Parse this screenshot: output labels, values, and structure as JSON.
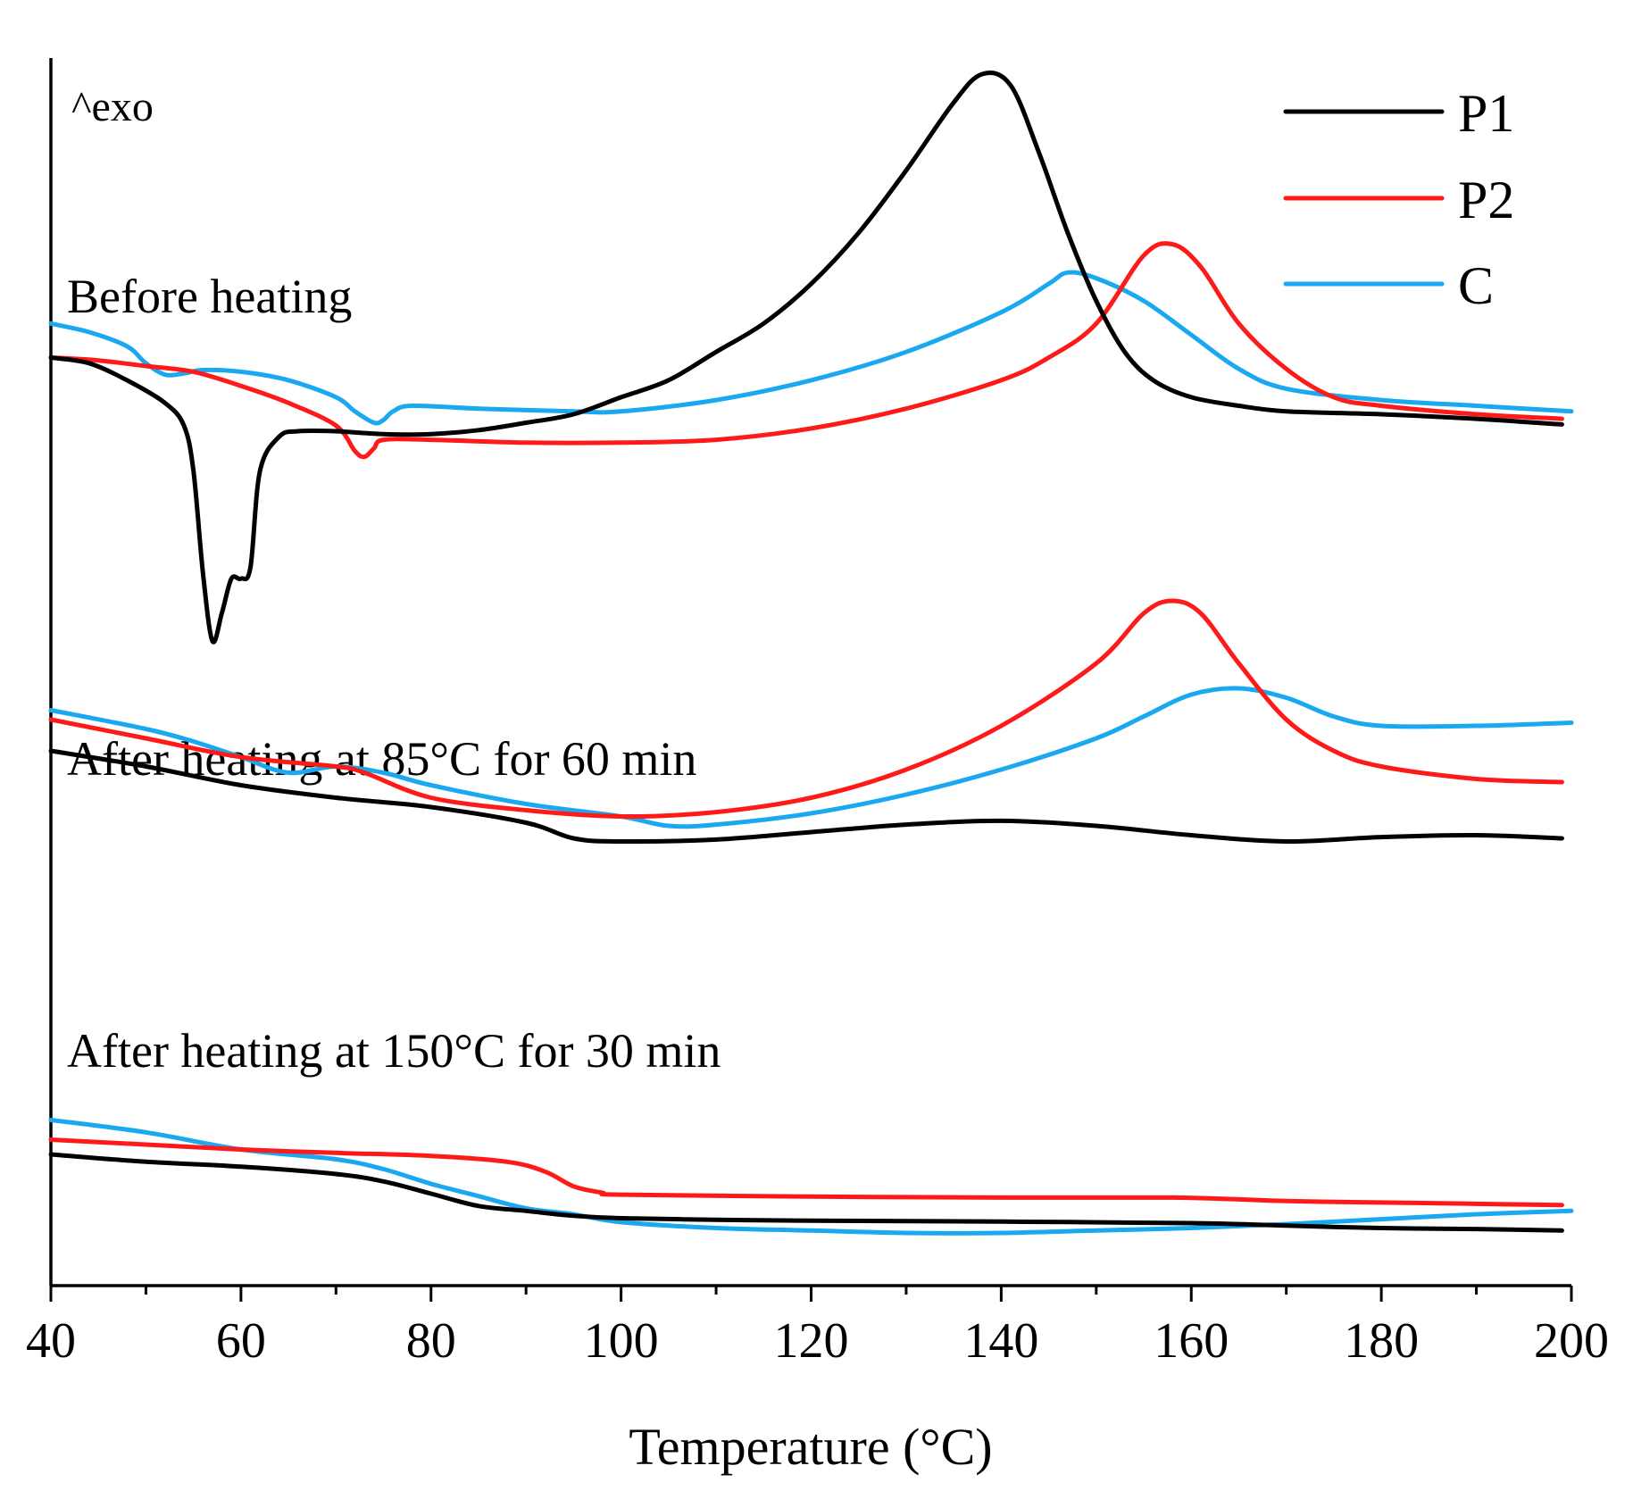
{
  "chart_data": {
    "type": "line",
    "title": "",
    "xlabel": "Temperature (°C)",
    "ylabel": "",
    "xlim": [
      40,
      200
    ],
    "x_ticks": [
      40,
      60,
      80,
      100,
      120,
      140,
      160,
      180,
      200
    ],
    "x_minor_ticks": [
      50,
      70,
      90,
      110,
      130,
      150,
      170,
      190
    ],
    "y_ticks": [],
    "grid": false,
    "y_units": "arbitrary (heat flow, curves vertically offset per panel)",
    "exo_label": "^exo",
    "legend": {
      "position": "top-right",
      "entries": [
        {
          "name": "P1",
          "color": "#000000"
        },
        {
          "name": "P2",
          "color": "#ff1a1a"
        },
        {
          "name": "C",
          "color": "#1aa8f0"
        }
      ]
    },
    "panels": [
      {
        "label": "Before heating",
        "series": [
          {
            "name": "P1",
            "color": "#000000",
            "points": [
              [
                40,
                5.0
              ],
              [
                44,
                4.9
              ],
              [
                48,
                4.6
              ],
              [
                52,
                4.2
              ],
              [
                54,
                3.8
              ],
              [
                55,
                3.0
              ],
              [
                56,
                1.2
              ],
              [
                57,
                0.0
              ],
              [
                58,
                0.5
              ],
              [
                59,
                1.1
              ],
              [
                60,
                1.1
              ],
              [
                61,
                1.3
              ],
              [
                62,
                3.0
              ],
              [
                64,
                3.6
              ],
              [
                66,
                3.7
              ],
              [
                70,
                3.7
              ],
              [
                75,
                3.65
              ],
              [
                80,
                3.65
              ],
              [
                85,
                3.72
              ],
              [
                90,
                3.85
              ],
              [
                95,
                4.0
              ],
              [
                100,
                4.3
              ],
              [
                105,
                4.6
              ],
              [
                110,
                5.1
              ],
              [
                115,
                5.6
              ],
              [
                120,
                6.3
              ],
              [
                125,
                7.2
              ],
              [
                130,
                8.3
              ],
              [
                135,
                9.5
              ],
              [
                138,
                10.0
              ],
              [
                141,
                9.8
              ],
              [
                144,
                8.6
              ],
              [
                147,
                7.2
              ],
              [
                150,
                6.0
              ],
              [
                153,
                5.1
              ],
              [
                156,
                4.6
              ],
              [
                160,
                4.3
              ],
              [
                165,
                4.15
              ],
              [
                170,
                4.05
              ],
              [
                180,
                4.0
              ],
              [
                190,
                3.92
              ],
              [
                199,
                3.82
              ]
            ]
          },
          {
            "name": "P2",
            "color": "#ff1a1a",
            "points": [
              [
                40,
                5.0
              ],
              [
                45,
                4.95
              ],
              [
                50,
                4.85
              ],
              [
                55,
                4.75
              ],
              [
                60,
                4.5
              ],
              [
                65,
                4.2
              ],
              [
                70,
                3.8
              ],
              [
                72,
                3.35
              ],
              [
                73,
                3.25
              ],
              [
                74,
                3.4
              ],
              [
                75,
                3.55
              ],
              [
                80,
                3.55
              ],
              [
                90,
                3.5
              ],
              [
                100,
                3.5
              ],
              [
                110,
                3.55
              ],
              [
                120,
                3.75
              ],
              [
                130,
                4.1
              ],
              [
                140,
                4.6
              ],
              [
                145,
                5.0
              ],
              [
                150,
                5.6
              ],
              [
                155,
                6.8
              ],
              [
                158,
                7.0
              ],
              [
                161,
                6.6
              ],
              [
                165,
                5.6
              ],
              [
                170,
                4.8
              ],
              [
                175,
                4.3
              ],
              [
                180,
                4.15
              ],
              [
                190,
                4.0
              ],
              [
                199,
                3.92
              ]
            ]
          },
          {
            "name": "C",
            "color": "#1aa8f0",
            "points": [
              [
                40,
                5.6
              ],
              [
                44,
                5.45
              ],
              [
                48,
                5.2
              ],
              [
                50,
                4.9
              ],
              [
                52,
                4.7
              ],
              [
                54,
                4.72
              ],
              [
                56,
                4.78
              ],
              [
                60,
                4.75
              ],
              [
                65,
                4.6
              ],
              [
                70,
                4.3
              ],
              [
                72,
                4.05
              ],
              [
                74,
                3.85
              ],
              [
                75,
                3.9
              ],
              [
                76,
                4.05
              ],
              [
                78,
                4.15
              ],
              [
                85,
                4.1
              ],
              [
                95,
                4.05
              ],
              [
                100,
                4.05
              ],
              [
                110,
                4.25
              ],
              [
                120,
                4.6
              ],
              [
                130,
                5.1
              ],
              [
                140,
                5.8
              ],
              [
                145,
                6.3
              ],
              [
                147,
                6.5
              ],
              [
                150,
                6.4
              ],
              [
                155,
                6.0
              ],
              [
                160,
                5.4
              ],
              [
                165,
                4.8
              ],
              [
                170,
                4.45
              ],
              [
                180,
                4.25
              ],
              [
                190,
                4.15
              ],
              [
                200,
                4.05
              ]
            ]
          }
        ]
      },
      {
        "label": "After heating at 85°C for 60 min",
        "series": [
          {
            "name": "P1",
            "color": "#000000",
            "points": [
              [
                40,
                2.8
              ],
              [
                50,
                2.55
              ],
              [
                60,
                2.25
              ],
              [
                70,
                2.05
              ],
              [
                80,
                1.9
              ],
              [
                90,
                1.65
              ],
              [
                95,
                1.4
              ],
              [
                100,
                1.35
              ],
              [
                110,
                1.38
              ],
              [
                120,
                1.5
              ],
              [
                130,
                1.62
              ],
              [
                140,
                1.68
              ],
              [
                150,
                1.6
              ],
              [
                160,
                1.45
              ],
              [
                170,
                1.35
              ],
              [
                180,
                1.42
              ],
              [
                190,
                1.45
              ],
              [
                199,
                1.4
              ]
            ]
          },
          {
            "name": "P2",
            "color": "#ff1a1a",
            "points": [
              [
                40,
                3.3
              ],
              [
                50,
                3.0
              ],
              [
                60,
                2.7
              ],
              [
                70,
                2.55
              ],
              [
                73,
                2.45
              ],
              [
                80,
                2.05
              ],
              [
                90,
                1.85
              ],
              [
                100,
                1.75
              ],
              [
                110,
                1.82
              ],
              [
                120,
                2.05
              ],
              [
                130,
                2.5
              ],
              [
                140,
                3.2
              ],
              [
                150,
                4.2
              ],
              [
                155,
                5.0
              ],
              [
                158,
                5.2
              ],
              [
                161,
                5.0
              ],
              [
                165,
                4.2
              ],
              [
                170,
                3.3
              ],
              [
                175,
                2.8
              ],
              [
                180,
                2.55
              ],
              [
                190,
                2.35
              ],
              [
                199,
                2.3
              ]
            ]
          },
          {
            "name": "C",
            "color": "#1aa8f0",
            "points": [
              [
                40,
                3.45
              ],
              [
                50,
                3.15
              ],
              [
                55,
                2.95
              ],
              [
                60,
                2.7
              ],
              [
                65,
                2.45
              ],
              [
                70,
                2.55
              ],
              [
                75,
                2.45
              ],
              [
                80,
                2.25
              ],
              [
                90,
                1.95
              ],
              [
                100,
                1.75
              ],
              [
                105,
                1.6
              ],
              [
                110,
                1.62
              ],
              [
                120,
                1.8
              ],
              [
                130,
                2.1
              ],
              [
                140,
                2.5
              ],
              [
                150,
                3.0
              ],
              [
                155,
                3.35
              ],
              [
                160,
                3.7
              ],
              [
                165,
                3.8
              ],
              [
                170,
                3.65
              ],
              [
                175,
                3.35
              ],
              [
                180,
                3.2
              ],
              [
                190,
                3.2
              ],
              [
                200,
                3.25
              ]
            ]
          }
        ]
      },
      {
        "label": "After heating at 150°C for 30 min",
        "series": [
          {
            "name": "P1",
            "color": "#000000",
            "points": [
              [
                40,
                1.6
              ],
              [
                50,
                1.45
              ],
              [
                60,
                1.35
              ],
              [
                70,
                1.2
              ],
              [
                75,
                1.05
              ],
              [
                80,
                0.8
              ],
              [
                85,
                0.55
              ],
              [
                90,
                0.45
              ],
              [
                95,
                0.35
              ],
              [
                100,
                0.3
              ],
              [
                110,
                0.27
              ],
              [
                120,
                0.25
              ],
              [
                140,
                0.23
              ],
              [
                160,
                0.2
              ],
              [
                170,
                0.15
              ],
              [
                180,
                0.1
              ],
              [
                190,
                0.08
              ],
              [
                199,
                0.05
              ]
            ]
          },
          {
            "name": "P2",
            "color": "#ff1a1a",
            "points": [
              [
                40,
                1.9
              ],
              [
                50,
                1.8
              ],
              [
                60,
                1.7
              ],
              [
                70,
                1.63
              ],
              [
                80,
                1.57
              ],
              [
                88,
                1.45
              ],
              [
                92,
                1.25
              ],
              [
                95,
                0.95
              ],
              [
                98,
                0.82
              ],
              [
                100,
                0.78
              ],
              [
                120,
                0.74
              ],
              [
                140,
                0.72
              ],
              [
                158,
                0.72
              ],
              [
                170,
                0.65
              ],
              [
                180,
                0.62
              ],
              [
                199,
                0.57
              ]
            ]
          },
          {
            "name": "C",
            "color": "#1aa8f0",
            "points": [
              [
                40,
                2.3
              ],
              [
                50,
                2.05
              ],
              [
                60,
                1.7
              ],
              [
                70,
                1.5
              ],
              [
                75,
                1.3
              ],
              [
                80,
                1.0
              ],
              [
                85,
                0.75
              ],
              [
                90,
                0.5
              ],
              [
                95,
                0.38
              ],
              [
                100,
                0.22
              ],
              [
                110,
                0.1
              ],
              [
                120,
                0.05
              ],
              [
                130,
                0.0
              ],
              [
                140,
                0.0
              ],
              [
                150,
                0.05
              ],
              [
                160,
                0.1
              ],
              [
                170,
                0.18
              ],
              [
                180,
                0.28
              ],
              [
                190,
                0.38
              ],
              [
                200,
                0.45
              ]
            ]
          }
        ]
      }
    ]
  }
}
